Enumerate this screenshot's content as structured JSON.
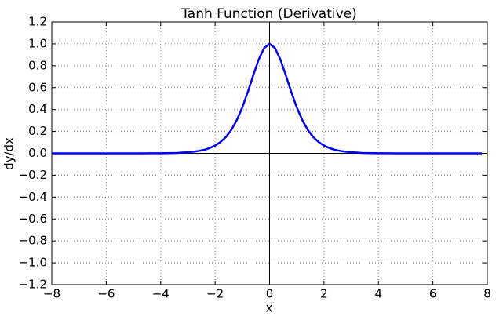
{
  "chart_data": {
    "type": "line",
    "title": "Tanh Function (Derivative)",
    "x_label": "x",
    "y_label": "dy/dx",
    "x": [
      -8,
      -7.8,
      -7.6,
      -7.4,
      -7.2,
      -7,
      -6.8,
      -6.6,
      -6.4,
      -6.2,
      -6,
      -5.8,
      -5.6,
      -5.4,
      -5.2,
      -5,
      -4.8,
      -4.6,
      -4.4,
      -4.2,
      -4,
      -3.8,
      -3.6,
      -3.4,
      -3.2,
      -3,
      -2.8,
      -2.6,
      -2.4,
      -2.2,
      -2,
      -1.8,
      -1.6,
      -1.4,
      -1.2,
      -1,
      -0.8,
      -0.6,
      -0.4,
      -0.2,
      0,
      0.2,
      0.4,
      0.6,
      0.8,
      1,
      1.2,
      1.4,
      1.6,
      1.8,
      2,
      2.2,
      2.4,
      2.6,
      2.8,
      3,
      3.2,
      3.4,
      3.6,
      3.8,
      4,
      4.2,
      4.4,
      4.6,
      4.8,
      5,
      5.2,
      5.4,
      5.6,
      5.8,
      6,
      6.2,
      6.4,
      6.6,
      6.8,
      7,
      7.2,
      7.4,
      7.6,
      7.8
    ],
    "series": [
      {
        "color": "#0000ff",
        "values": [
          0,
          0,
          0,
          0,
          0,
          0,
          0,
          0,
          0,
          0,
          0,
          0,
          0,
          0,
          0,
          0,
          0,
          0,
          0.001,
          0.001,
          0.001,
          0.002,
          0.003,
          0.004,
          0.007,
          0.01,
          0.015,
          0.022,
          0.032,
          0.048,
          0.071,
          0.104,
          0.15,
          0.216,
          0.305,
          0.42,
          0.559,
          0.712,
          0.856,
          0.961,
          1,
          0.961,
          0.856,
          0.712,
          0.559,
          0.42,
          0.305,
          0.216,
          0.15,
          0.104,
          0.071,
          0.048,
          0.032,
          0.022,
          0.015,
          0.01,
          0.007,
          0.004,
          0.003,
          0.002,
          0.001,
          0.001,
          0.001,
          0,
          0,
          0,
          0,
          0,
          0,
          0,
          0,
          0,
          0,
          0,
          0,
          0,
          0,
          0,
          0,
          0
        ]
      }
    ],
    "xlim": [
      -8,
      8
    ],
    "ylim": [
      -1.2,
      1.2
    ],
    "xticks": [
      {
        "value": -8,
        "label": "−8"
      },
      {
        "value": -6,
        "label": "−6"
      },
      {
        "value": -4,
        "label": "−4"
      },
      {
        "value": -2,
        "label": "−2"
      },
      0,
      2,
      4,
      6,
      8
    ],
    "yticks": [
      {
        "value": -1.2,
        "label": "−1.2"
      },
      {
        "value": -1.0,
        "label": "−1.0"
      },
      {
        "value": -0.8,
        "label": "−0.8"
      },
      {
        "value": -0.6,
        "label": "−0.6"
      },
      {
        "value": -0.4,
        "label": "−0.4"
      },
      {
        "value": -0.2,
        "label": "−0.2"
      },
      {
        "value": 0,
        "label": "0.0"
      },
      {
        "value": 0.2,
        "label": "0.2"
      },
      {
        "value": 0.4,
        "label": "0.4"
      },
      {
        "value": 0.6,
        "label": "0.6"
      },
      {
        "value": 0.8,
        "label": "0.8"
      },
      {
        "value": 1.0,
        "label": "1.0"
      },
      {
        "value": 1.2,
        "label": "1.2"
      }
    ],
    "grid": true
  }
}
